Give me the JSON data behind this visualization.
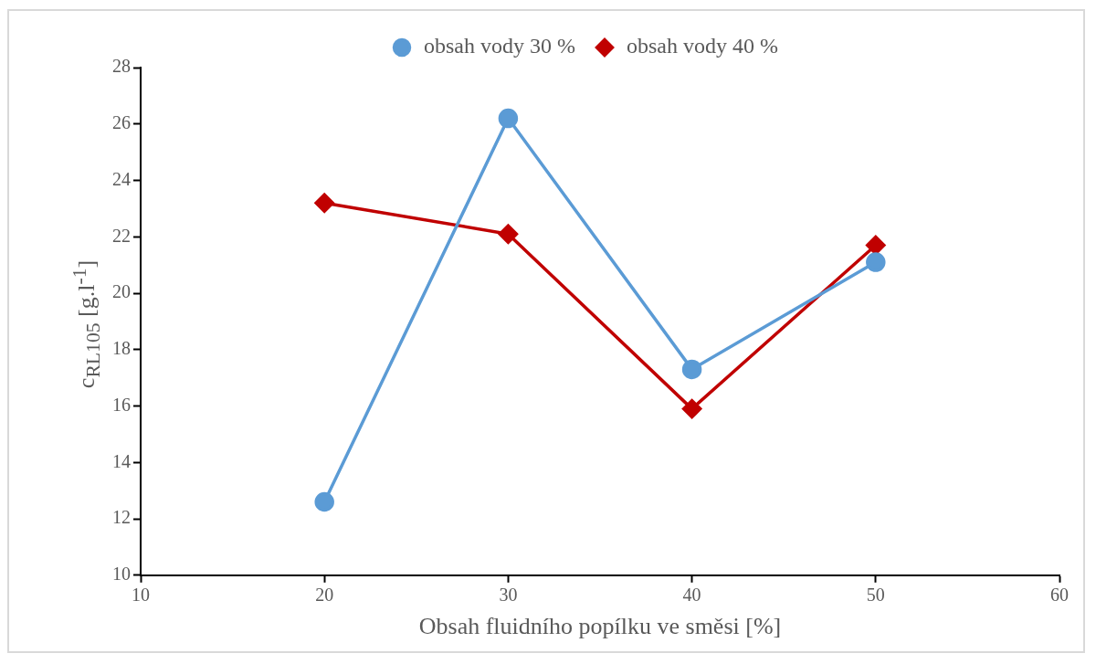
{
  "chart_data": {
    "type": "line",
    "xlabel": "Obsah fluidního popílku ve směsi [%]",
    "ylabel": "c$_{RL105}$ [g.l$^{-1}$]",
    "x": [
      20,
      30,
      40,
      50
    ],
    "series": [
      {
        "name": "obsah vody 30 %",
        "color": "#5b9bd5",
        "marker": "circle",
        "values": [
          12.6,
          26.2,
          17.3,
          21.1
        ]
      },
      {
        "name": "obsah vody 40 %",
        "color": "#c00000",
        "marker": "diamond",
        "values": [
          23.2,
          22.1,
          15.9,
          21.7
        ]
      }
    ],
    "xlim": [
      10,
      60
    ],
    "xticks": [
      10,
      20,
      30,
      40,
      50,
      60
    ],
    "ylim": [
      10,
      28
    ],
    "yticks": [
      10,
      12,
      14,
      16,
      18,
      20,
      22,
      24,
      26,
      28
    ],
    "grid": false,
    "legend": "top"
  }
}
